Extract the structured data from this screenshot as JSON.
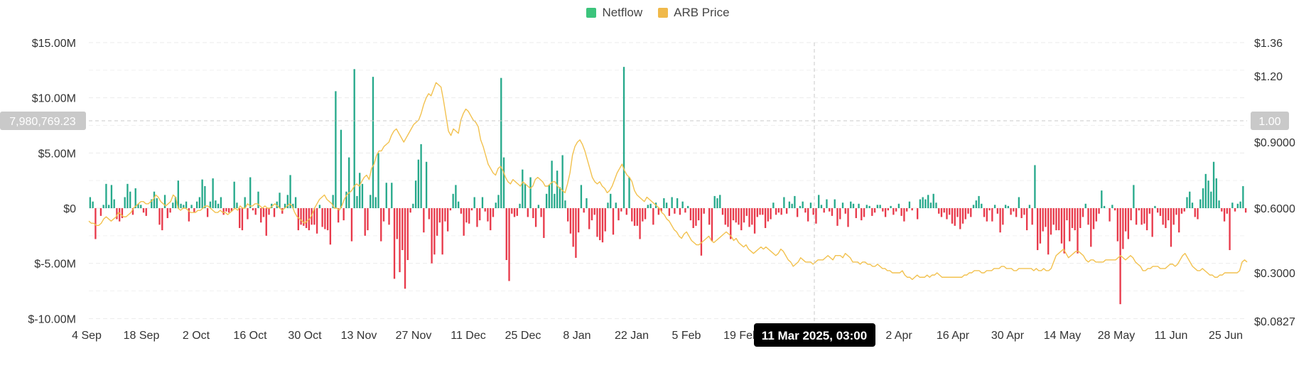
{
  "legend": {
    "netflow_label": "Netflow",
    "price_label": "ARB Price"
  },
  "crosshair": {
    "date_label": "11 Mar 2025, 03:00",
    "left_value": "7,980,769.23",
    "right_value": "1.00"
  },
  "colors": {
    "positive": "#26a98b",
    "negative": "#e8394a",
    "price": "#f2c14e",
    "netflow_legend": "#3cc47c",
    "price_legend": "#f0b94a"
  },
  "chart_data": {
    "type": "bar",
    "x_tick_labels": [
      "4 Sep",
      "18 Sep",
      "2 Oct",
      "16 Oct",
      "30 Oct",
      "13 Nov",
      "27 Nov",
      "11 Dec",
      "25 Dec",
      "8 Jan",
      "22 Jan",
      "5 Feb",
      "19 Feb",
      "2 Apr",
      "16 Apr",
      "30 Apr",
      "14 May",
      "28 May",
      "11 Jun",
      "25 Jun"
    ],
    "y_left": {
      "ticks": [
        "$15.00M",
        "$10.00M",
        "$5.00M",
        "$0",
        "$-5.00M",
        "$-10.00M"
      ],
      "ylim": [
        -10000000,
        15000000
      ]
    },
    "y_right": {
      "ticks": [
        "$1.36",
        "$1.20",
        "$0.9000",
        "$0.6000",
        "$0.3000",
        "$0.0827"
      ],
      "ylim": [
        0.0827,
        1.36
      ]
    },
    "series": [
      {
        "name": "Netflow",
        "kind": "bar",
        "unit": "USD",
        "values": [
          1.0,
          0.6,
          -2.8,
          0,
          -0.7,
          0.3,
          2.2,
          0.3,
          2.1,
          0.8,
          -1.0,
          -1.2,
          -0.9,
          1.0,
          2.2,
          1.5,
          -0.6,
          1.8,
          0.4,
          0.3,
          -0.4,
          -0.7,
          0,
          0.8,
          1.5,
          0.9,
          -1.5,
          -2.0,
          1.2,
          -0.9,
          -0.4,
          0.5,
          1.0,
          2.5,
          0.4,
          0.3,
          0.6,
          -1.2,
          0.3,
          -0.4,
          0.6,
          1.0,
          2.6,
          2.0,
          -0.8,
          0.6,
          2.7,
          0.7,
          0.4,
          1.0,
          -0.6,
          -0.3,
          -0.4,
          -0.3,
          2.4,
          0.5,
          -1.8,
          -2.0,
          1.0,
          -1.0,
          2.8,
          -0.2,
          -0.6,
          1.5,
          -1.3,
          -0.8,
          -2.5,
          -0.6,
          0.4,
          -0.8,
          0.6,
          1.4,
          -0.5,
          0.4,
          1.2,
          3.0,
          0.4,
          1.0,
          -2.0,
          -1.5,
          -1.6,
          -1.8,
          -2.0,
          -1.5,
          -1.5,
          -2.3,
          0.3,
          -1.7,
          -1.9,
          -2.0,
          -3.3,
          1.2,
          10.6,
          -1.3,
          7.1,
          -1.1,
          1.5,
          4.6,
          -3.0,
          12.6,
          1.1,
          3.2,
          2.2,
          -2.5,
          -2.0,
          1.2,
          11.9,
          1.0,
          5.0,
          -3.0,
          -1.2,
          2.3,
          -1.5,
          2.3,
          -6.4,
          -2.8,
          -5.8,
          -3.8,
          -7.3,
          -4.7,
          -0.4,
          0.4,
          2.5,
          4.4,
          5.8,
          -2.2,
          4.2,
          -1.0,
          -5.0,
          -4.2,
          -2.5,
          -1.3,
          -4.2,
          -1.2,
          -2.1,
          -0.2,
          1.3,
          2.1,
          0.6,
          -0.5,
          -2.5,
          -1.3,
          -1.4,
          -0.2,
          1.0,
          -1.7,
          -1.1,
          1.0,
          -0.3,
          -1.2,
          -2.0,
          -0.8,
          0.5,
          1.2,
          11.8,
          4.6,
          -4.7,
          -6.6,
          -0.5,
          -0.8,
          -0.7,
          0.4,
          3.5,
          2.2,
          -0.8,
          2.8,
          -0.9,
          -1.7,
          0.3,
          -0.8,
          -2.7,
          1.3,
          2.1,
          4.3,
          1.3,
          3.4,
          1.9,
          4.8,
          0.7,
          -1.2,
          -2.3,
          -3.5,
          -4.5,
          -2.2,
          2.1,
          -0.4,
          0.9,
          -1.9,
          -1.1,
          -0.6,
          -2.6,
          -2.9,
          -3.1,
          -2.1,
          0.5,
          1.3,
          -2.4,
          0.5,
          -1.1,
          -0.3,
          12.8,
          -0.6,
          2.8,
          -1.2,
          -1.6,
          -1.6,
          -2.8,
          -1.2,
          -1.0,
          0.3,
          0.4,
          -1.5,
          0.5,
          -0.6,
          -0.3,
          0.9,
          0.5,
          -0.7,
          1.0,
          -0.5,
          0.9,
          -0.6,
          0.6,
          -0.4,
          0.2,
          -1.1,
          -1.8,
          -1.6,
          -1.1,
          -4.3,
          -0.5,
          0,
          -1.5,
          -3.0,
          1.1,
          0.9,
          1.2,
          -0.6,
          -1.5,
          -1.7,
          -2.8,
          -1.1,
          -1.3,
          -1.5,
          -2.0,
          -1.3,
          -0.7,
          -1.7,
          -1.5,
          -2.3,
          -0.8,
          -0.6,
          -0.6,
          -1.8,
          -1.2,
          -1.0,
          0.5,
          -0.6,
          -0.4,
          -0.6,
          1.0,
          -0.5,
          0.6,
          0.4,
          1.1,
          -0.8,
          0.2,
          0.6,
          -0.4,
          -1.2,
          0.5,
          -0.6,
          -1.4,
          1.2,
          0.3,
          -0.4,
          0.8,
          -0.3,
          -0.7,
          0.8,
          -1.6,
          -1.0,
          0.5,
          -0.5,
          -1.7,
          0.6,
          0.4,
          -0.9,
          0.4,
          -1.1,
          -0.8,
          0.3,
          0.2,
          -0.7,
          -0.4,
          0.3,
          0.3,
          -0.3,
          -0.8,
          -0.2,
          0.2,
          -0.6,
          -0.3,
          0.4,
          -0.7,
          -1.2,
          -0.3,
          0.6,
          -0.2,
          0,
          -1.0,
          0.8,
          1.0,
          0.8,
          1.2,
          0.5,
          1.3,
          0.5,
          -0.5,
          -0.8,
          -0.4,
          -1.0,
          -0.6,
          -1.4,
          -1.6,
          -0.8,
          -1.9,
          -1.4,
          -1.0,
          -0.5,
          -0.8,
          0.3,
          0.7,
          1.1,
          0.4,
          -0.8,
          -1.2,
          -0.2,
          -1.2,
          0.3,
          -0.5,
          -2.2,
          -1.5,
          0.3,
          0.2,
          -0.6,
          -0.3,
          -0.8,
          1.0,
          -0.9,
          -0.6,
          -2.0,
          0.3,
          -1.5,
          3.9,
          -3.8,
          -3.2,
          -2.1,
          -1.7,
          -4.2,
          -2.4,
          -1.5,
          -2.0,
          -2.0,
          -3.2,
          -4.1,
          -1.1,
          -3.0,
          -1.8,
          -2.0,
          -4.1,
          -1.8,
          -0.8,
          0.4,
          -1.5,
          -3.5,
          -1.9,
          -1.2,
          -0.5,
          1.6,
          0.2,
          0,
          -1.2,
          0.3,
          -0.2,
          -3.0,
          -8.7,
          -3.7,
          -2.1,
          -2.8,
          -1.1,
          2.1,
          -1.5,
          -0.2,
          -1.5,
          -1.4,
          -2.0,
          -0.5,
          -2.6,
          0.2,
          -0.4,
          -0.7,
          -1.5,
          -1.8,
          -1.1,
          -3.5,
          -1.5,
          -0.6,
          -2.2,
          -0.5,
          -0.3,
          1.0,
          1.5,
          0.5,
          -0.8,
          -1.0,
          0.8,
          1.8,
          3.1,
          2.5,
          1.5,
          4.2,
          2.7,
          0.7,
          -0.3,
          -1.2,
          -0.5,
          -3.8,
          0.5,
          -0.3,
          0.4,
          0.6,
          2.0,
          -0.4
        ]
      },
      {
        "name": "ARB Price",
        "kind": "line",
        "unit": "USD",
        "values": [
          0.54,
          0.53,
          0.53,
          0.52,
          0.52,
          0.53,
          0.55,
          0.56,
          0.55,
          0.54,
          0.55,
          0.56,
          0.58,
          0.57,
          0.56,
          0.56,
          0.57,
          0.58,
          0.6,
          0.61,
          0.62,
          0.63,
          0.63,
          0.62,
          0.62,
          0.63,
          0.64,
          0.66,
          0.65,
          0.63,
          0.62,
          0.61,
          0.62,
          0.63,
          0.66,
          0.65,
          0.6,
          0.59,
          0.6,
          0.6,
          0.59,
          0.58,
          0.58,
          0.58,
          0.59,
          0.59,
          0.6,
          0.61,
          0.61,
          0.6,
          0.59,
          0.58,
          0.58,
          0.59,
          0.58,
          0.58,
          0.57,
          0.58,
          0.59,
          0.6,
          0.59,
          0.61,
          0.6,
          0.6,
          0.62,
          0.61,
          0.61,
          0.62,
          0.62,
          0.61,
          0.6,
          0.61,
          0.6,
          0.6,
          0.61,
          0.62,
          0.61,
          0.6,
          0.59,
          0.6,
          0.61,
          0.62,
          0.61,
          0.58,
          0.56,
          0.55,
          0.54,
          0.53,
          0.54,
          0.55,
          0.57,
          0.6,
          0.62,
          0.64,
          0.65,
          0.66,
          0.64,
          0.63,
          0.62,
          0.6,
          0.6,
          0.59,
          0.61,
          0.64,
          0.66,
          0.67,
          0.68,
          0.7,
          0.71,
          0.7,
          0.72,
          0.74,
          0.75,
          0.73,
          0.78,
          0.8,
          0.84,
          0.86,
          0.86,
          0.88,
          0.89,
          0.9,
          0.93,
          0.95,
          0.96,
          0.94,
          0.92,
          0.9,
          0.92,
          0.94,
          0.96,
          0.98,
          0.99,
          1.0,
          1.03,
          1.07,
          1.1,
          1.12,
          1.11,
          1.14,
          1.17,
          1.16,
          1.15,
          1.09,
          1.02,
          0.95,
          0.93,
          0.96,
          0.95,
          0.94,
          1.0,
          1.03,
          1.05,
          1.04,
          1.02,
          1.0,
          0.99,
          0.97,
          0.91,
          0.88,
          0.84,
          0.8,
          0.78,
          0.76,
          0.75,
          0.78,
          0.79,
          0.77,
          0.74,
          0.72,
          0.71,
          0.73,
          0.72,
          0.71,
          0.7,
          0.72,
          0.71,
          0.7,
          0.69,
          0.7,
          0.73,
          0.74,
          0.73,
          0.72,
          0.7,
          0.7,
          0.71,
          0.72,
          0.72,
          0.7,
          0.69,
          0.68,
          0.67,
          0.71,
          0.76,
          0.84,
          0.88,
          0.9,
          0.91,
          0.89,
          0.86,
          0.82,
          0.78,
          0.74,
          0.72,
          0.71,
          0.72,
          0.7,
          0.69,
          0.67,
          0.68,
          0.7,
          0.73,
          0.76,
          0.78,
          0.8,
          0.77,
          0.75,
          0.74,
          0.72,
          0.68,
          0.66,
          0.65,
          0.64,
          0.63,
          0.65,
          0.64,
          0.63,
          0.62,
          0.61,
          0.6,
          0.58,
          0.57,
          0.55,
          0.54,
          0.52,
          0.5,
          0.49,
          0.47,
          0.46,
          0.48,
          0.49,
          0.47,
          0.45,
          0.44,
          0.43,
          0.43,
          0.44,
          0.45,
          0.46,
          0.47,
          0.45,
          0.44,
          0.45,
          0.46,
          0.47,
          0.48,
          0.49,
          0.48,
          0.47,
          0.45,
          0.46,
          0.44,
          0.43,
          0.42,
          0.43,
          0.41,
          0.4,
          0.39,
          0.4,
          0.41,
          0.42,
          0.41,
          0.42,
          0.41,
          0.4,
          0.39,
          0.38,
          0.39,
          0.41,
          0.4,
          0.38,
          0.36,
          0.35,
          0.33,
          0.34,
          0.35,
          0.37,
          0.36,
          0.35,
          0.35,
          0.35,
          0.34,
          0.35,
          0.36,
          0.36,
          0.36,
          0.37,
          0.38,
          0.37,
          0.36,
          0.38,
          0.38,
          0.38,
          0.37,
          0.39,
          0.38,
          0.37,
          0.35,
          0.35,
          0.35,
          0.34,
          0.35,
          0.35,
          0.34,
          0.34,
          0.33,
          0.33,
          0.34,
          0.33,
          0.32,
          0.32,
          0.31,
          0.31,
          0.3,
          0.3,
          0.3,
          0.3,
          0.31,
          0.29,
          0.28,
          0.28,
          0.27,
          0.28,
          0.29,
          0.28,
          0.28,
          0.28,
          0.29,
          0.28,
          0.29,
          0.29,
          0.3,
          0.29,
          0.28,
          0.28,
          0.28,
          0.28,
          0.28,
          0.28,
          0.28,
          0.28,
          0.28,
          0.29,
          0.29,
          0.3,
          0.3,
          0.31,
          0.31,
          0.31,
          0.3,
          0.3,
          0.31,
          0.31,
          0.31,
          0.32,
          0.32,
          0.32,
          0.33,
          0.33,
          0.32,
          0.32,
          0.32,
          0.31,
          0.31,
          0.32,
          0.32,
          0.32,
          0.32,
          0.32,
          0.32,
          0.31,
          0.32,
          0.31,
          0.31,
          0.32,
          0.31,
          0.31,
          0.32,
          0.35,
          0.38,
          0.39,
          0.4,
          0.41,
          0.39,
          0.37,
          0.38,
          0.39,
          0.4,
          0.4,
          0.39,
          0.38,
          0.36,
          0.35,
          0.36,
          0.36,
          0.35,
          0.35,
          0.35,
          0.35,
          0.36,
          0.36,
          0.36,
          0.36,
          0.36,
          0.37,
          0.38,
          0.37,
          0.36,
          0.37,
          0.38,
          0.37,
          0.35,
          0.34,
          0.33,
          0.31,
          0.31,
          0.32,
          0.32,
          0.33,
          0.33,
          0.33,
          0.32,
          0.32,
          0.32,
          0.33,
          0.34,
          0.34,
          0.33,
          0.34,
          0.36,
          0.38,
          0.39,
          0.37,
          0.35,
          0.33,
          0.32,
          0.31,
          0.31,
          0.32,
          0.31,
          0.3,
          0.29,
          0.29,
          0.28,
          0.28,
          0.29,
          0.29,
          0.3,
          0.3,
          0.3,
          0.3,
          0.3,
          0.3,
          0.31,
          0.35,
          0.36,
          0.35
        ]
      }
    ],
    "values_scale_note": "Netflow values in millions USD",
    "grid": true,
    "legend_position": "top-center"
  }
}
